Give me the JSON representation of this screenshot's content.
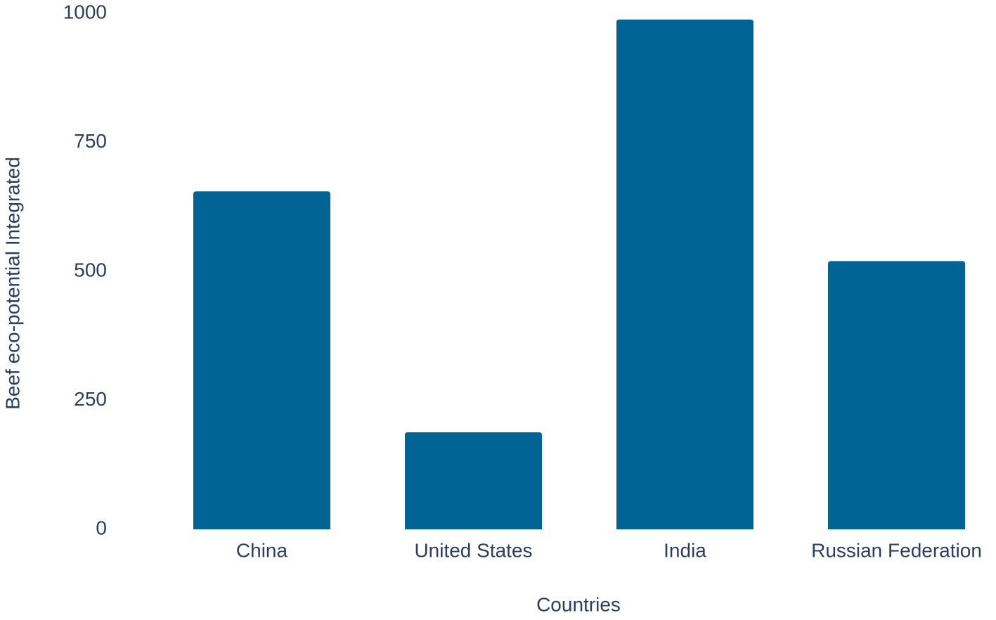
{
  "chart_data": {
    "type": "bar",
    "x_label": "Countries",
    "y_label": "Beef eco-potential Integrated",
    "categories": [
      "China",
      "United States",
      "India",
      "Russian Federation"
    ],
    "values": [
      655,
      188,
      988,
      520
    ],
    "color": "#026494",
    "ylim": [
      0,
      1000
    ],
    "yticks": [
      0,
      250,
      500,
      750,
      1000
    ],
    "grid": false
  }
}
